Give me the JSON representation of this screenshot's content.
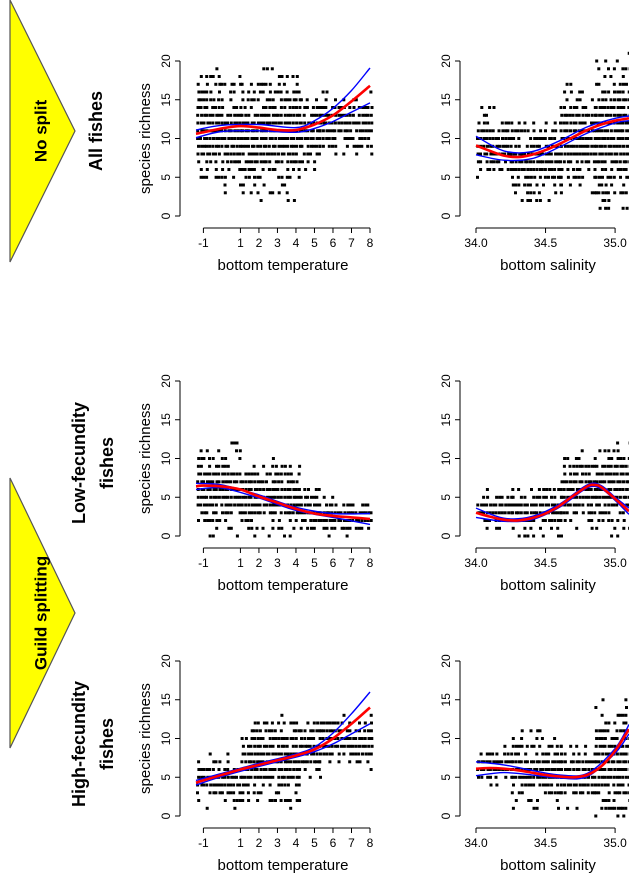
{
  "colors": {
    "banner_fill": "#ffff00",
    "banner_stroke": "#555555",
    "points": "#000000",
    "fit": "#ff0000",
    "ci": "#0000ff"
  },
  "banners": [
    {
      "label": "No split"
    },
    {
      "label": "Guild splitting"
    }
  ],
  "rows": [
    {
      "title_lines": [
        "All fishes"
      ]
    },
    {
      "title_lines": [
        "Low-fecundity",
        "fishes"
      ]
    },
    {
      "title_lines": [
        "High-fecundity",
        "fishes"
      ]
    }
  ],
  "chart_data": [
    {
      "type": "scatter",
      "row": 0,
      "col": 0,
      "xlabel": "bottom temperature",
      "ylabel": "species richness",
      "xlim": [
        -1.4,
        8
      ],
      "ylim": [
        0,
        20
      ],
      "xticks": [
        -1,
        1,
        2,
        3,
        4,
        5,
        6,
        7,
        8
      ],
      "yticks": [
        0,
        5,
        10,
        15,
        20
      ],
      "point_bands": [
        {
          "x0": -1.4,
          "x1": 1.0,
          "ylo": 3,
          "yhi": 19
        },
        {
          "x0": 1.0,
          "x1": 4.2,
          "ylo": 2,
          "yhi": 19
        },
        {
          "x0": 4.2,
          "x1": 5.2,
          "ylo": 5,
          "yhi": 16
        },
        {
          "x0": 5.2,
          "x1": 8.0,
          "ylo": 8,
          "yhi": 16
        }
      ],
      "fit": {
        "x": [
          -1.4,
          -1,
          0,
          1,
          2,
          3,
          4,
          5,
          6,
          7,
          8
        ],
        "y": [
          10.6,
          10.8,
          11.3,
          11.6,
          11.4,
          11.1,
          11.1,
          11.8,
          13.0,
          14.8,
          16.8
        ]
      },
      "ci_low": {
        "x": [
          -1.4,
          0,
          2,
          4,
          5,
          6,
          7,
          8
        ],
        "y": [
          10.1,
          10.9,
          11.0,
          10.8,
          11.3,
          12.2,
          13.4,
          14.6
        ]
      },
      "ci_high": {
        "x": [
          -1.4,
          0,
          2,
          4,
          5,
          6,
          7,
          8
        ],
        "y": [
          11.1,
          11.7,
          11.8,
          11.4,
          12.3,
          13.9,
          16.2,
          19.1
        ]
      }
    },
    {
      "type": "scatter",
      "row": 0,
      "col": 1,
      "xlabel": "bottom salinity",
      "ylabel": "",
      "xlim": [
        34.0,
        35.1
      ],
      "ylim": [
        0,
        20
      ],
      "xticks": [
        34.0,
        34.5,
        35.0
      ],
      "xtick_labels": [
        "34.0",
        "34.5",
        "35.0"
      ],
      "yticks": [
        0,
        5,
        10,
        15,
        20
      ],
      "point_bands": [
        {
          "x0": 34.0,
          "x1": 34.25,
          "ylo": 4,
          "yhi": 14
        },
        {
          "x0": 34.25,
          "x1": 34.6,
          "ylo": 2,
          "yhi": 12
        },
        {
          "x0": 34.6,
          "x1": 34.85,
          "ylo": 3,
          "yhi": 17
        },
        {
          "x0": 34.85,
          "x1": 35.1,
          "ylo": 1,
          "yhi": 21
        }
      ],
      "fit": {
        "x": [
          34.0,
          34.1,
          34.2,
          34.3,
          34.4,
          34.5,
          34.6,
          34.7,
          34.8,
          34.9,
          35.0,
          35.1
        ],
        "y": [
          9.1,
          8.4,
          7.8,
          7.6,
          7.9,
          8.5,
          9.3,
          10.2,
          11.1,
          11.8,
          12.3,
          12.6
        ]
      },
      "ci_low": {
        "x": [
          34.0,
          34.2,
          34.4,
          34.6,
          34.8,
          35.0,
          35.1
        ],
        "y": [
          7.9,
          7.2,
          7.4,
          8.9,
          10.7,
          12.0,
          12.3
        ]
      },
      "ci_high": {
        "x": [
          34.0,
          34.2,
          34.4,
          34.6,
          34.8,
          35.0,
          35.1
        ],
        "y": [
          10.3,
          8.4,
          8.3,
          9.7,
          11.5,
          12.6,
          12.9
        ]
      }
    },
    {
      "type": "scatter",
      "row": 1,
      "col": 0,
      "xlabel": "bottom temperature",
      "ylabel": "species richness",
      "xlim": [
        -1.4,
        8
      ],
      "ylim": [
        0,
        20
      ],
      "xticks": [
        -1,
        1,
        2,
        3,
        4,
        5,
        6,
        7,
        8
      ],
      "yticks": [
        0,
        5,
        10,
        15,
        20
      ],
      "point_bands": [
        {
          "x0": -1.4,
          "x1": 1.0,
          "ylo": 0,
          "yhi": 12
        },
        {
          "x0": 1.0,
          "x1": 4.2,
          "ylo": 0,
          "yhi": 10
        },
        {
          "x0": 4.2,
          "x1": 5.2,
          "ylo": 0,
          "yhi": 7
        },
        {
          "x0": 5.2,
          "x1": 8.0,
          "ylo": 0,
          "yhi": 5
        }
      ],
      "fit": {
        "x": [
          -1.4,
          -1,
          0,
          1,
          2,
          3,
          4,
          5,
          6,
          7,
          8
        ],
        "y": [
          6.4,
          6.5,
          6.4,
          6.0,
          5.1,
          4.3,
          3.5,
          2.9,
          2.6,
          2.4,
          2.2
        ]
      },
      "ci_low": {
        "x": [
          -1.4,
          0,
          2,
          4,
          6,
          8
        ],
        "y": [
          6.0,
          6.2,
          4.9,
          3.3,
          2.4,
          1.5
        ]
      },
      "ci_high": {
        "x": [
          -1.4,
          0,
          2,
          4,
          6,
          8
        ],
        "y": [
          6.8,
          6.6,
          5.3,
          3.7,
          2.9,
          2.9
        ]
      }
    },
    {
      "type": "scatter",
      "row": 1,
      "col": 1,
      "xlabel": "bottom salinity",
      "ylabel": "",
      "xlim": [
        34.0,
        35.1
      ],
      "ylim": [
        0,
        20
      ],
      "xticks": [
        34.0,
        34.5,
        35.0
      ],
      "xtick_labels": [
        "34.0",
        "34.5",
        "35.0"
      ],
      "yticks": [
        0,
        5,
        10,
        15,
        20
      ],
      "point_bands": [
        {
          "x0": 34.0,
          "x1": 34.25,
          "ylo": 0,
          "yhi": 6
        },
        {
          "x0": 34.25,
          "x1": 34.6,
          "ylo": 0,
          "yhi": 7
        },
        {
          "x0": 34.6,
          "x1": 34.85,
          "ylo": 1,
          "yhi": 11
        },
        {
          "x0": 34.85,
          "x1": 35.1,
          "ylo": 0,
          "yhi": 13
        }
      ],
      "fit": {
        "x": [
          34.0,
          34.1,
          34.2,
          34.3,
          34.4,
          34.5,
          34.6,
          34.7,
          34.8,
          34.85,
          34.9,
          35.0,
          35.1
        ],
        "y": [
          3.0,
          2.5,
          2.1,
          2.0,
          2.3,
          2.9,
          3.9,
          5.2,
          6.4,
          6.6,
          6.3,
          4.8,
          3.2
        ]
      },
      "ci_low": {
        "x": [
          34.0,
          34.2,
          34.4,
          34.6,
          34.8,
          34.9,
          35.0,
          35.1
        ],
        "y": [
          2.4,
          1.9,
          2.1,
          3.7,
          6.2,
          6.1,
          4.6,
          2.8
        ]
      },
      "ci_high": {
        "x": [
          34.0,
          34.2,
          34.4,
          34.6,
          34.8,
          34.9,
          35.0,
          35.1
        ],
        "y": [
          3.6,
          2.3,
          2.5,
          4.1,
          6.6,
          6.5,
          5.0,
          3.6
        ]
      }
    },
    {
      "type": "scatter",
      "row": 2,
      "col": 0,
      "xlabel": "bottom temperature",
      "ylabel": "species richness",
      "xlim": [
        -1.4,
        8
      ],
      "ylim": [
        0,
        20
      ],
      "xticks": [
        -1,
        1,
        2,
        3,
        4,
        5,
        6,
        7,
        8
      ],
      "yticks": [
        0,
        5,
        10,
        15,
        20
      ],
      "point_bands": [
        {
          "x0": -1.4,
          "x1": 1.0,
          "ylo": 1,
          "yhi": 8
        },
        {
          "x0": 1.0,
          "x1": 4.2,
          "ylo": 1,
          "yhi": 13
        },
        {
          "x0": 4.2,
          "x1": 5.2,
          "ylo": 4,
          "yhi": 13
        },
        {
          "x0": 5.2,
          "x1": 8.0,
          "ylo": 6,
          "yhi": 13
        }
      ],
      "fit": {
        "x": [
          -1.4,
          -1,
          0,
          1,
          2,
          3,
          4,
          5,
          6,
          7,
          8
        ],
        "y": [
          4.3,
          4.6,
          5.3,
          6.0,
          6.6,
          7.2,
          7.8,
          8.6,
          10.0,
          11.9,
          14.0
        ]
      },
      "ci_low": {
        "x": [
          -1.4,
          0,
          2,
          4,
          5,
          6,
          7,
          8
        ],
        "y": [
          4.0,
          5.1,
          6.4,
          7.6,
          8.3,
          9.3,
          10.6,
          11.9
        ]
      },
      "ci_high": {
        "x": [
          -1.4,
          0,
          2,
          4,
          5,
          6,
          7,
          8
        ],
        "y": [
          4.6,
          5.5,
          6.8,
          8.0,
          8.9,
          10.7,
          13.2,
          16.0
        ]
      }
    },
    {
      "type": "scatter",
      "row": 2,
      "col": 1,
      "xlabel": "bottom salinity",
      "ylabel": "",
      "xlim": [
        34.0,
        35.1
      ],
      "ylim": [
        0,
        20
      ],
      "xticks": [
        34.0,
        34.5,
        35.0
      ],
      "xtick_labels": [
        "34.0",
        "34.5",
        "35.0"
      ],
      "yticks": [
        0,
        5,
        10,
        15,
        20
      ],
      "point_bands": [
        {
          "x0": 34.0,
          "x1": 34.25,
          "ylo": 4,
          "yhi": 9
        },
        {
          "x0": 34.25,
          "x1": 34.6,
          "ylo": 1,
          "yhi": 11
        },
        {
          "x0": 34.6,
          "x1": 34.85,
          "ylo": 1,
          "yhi": 10
        },
        {
          "x0": 34.85,
          "x1": 35.1,
          "ylo": 0,
          "yhi": 15
        }
      ],
      "fit": {
        "x": [
          34.0,
          34.1,
          34.2,
          34.3,
          34.4,
          34.5,
          34.6,
          34.7,
          34.8,
          34.9,
          35.0,
          35.1
        ],
        "y": [
          6.1,
          6.2,
          6.1,
          5.9,
          5.6,
          5.3,
          5.1,
          5.0,
          5.3,
          6.4,
          8.4,
          11.2
        ]
      },
      "ci_low": {
        "x": [
          34.0,
          34.2,
          34.4,
          34.6,
          34.8,
          35.0,
          35.1
        ],
        "y": [
          5.2,
          5.6,
          5.3,
          4.9,
          5.1,
          8.1,
          10.6
        ]
      },
      "ci_high": {
        "x": [
          34.0,
          34.2,
          34.4,
          34.6,
          34.8,
          35.0,
          35.1
        ],
        "y": [
          7.0,
          6.6,
          5.9,
          5.3,
          5.5,
          8.7,
          11.8
        ]
      }
    }
  ]
}
